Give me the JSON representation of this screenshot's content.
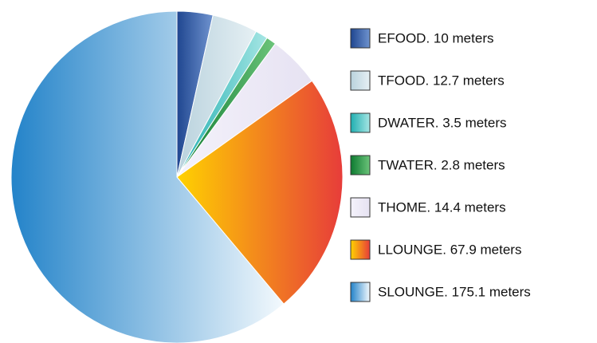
{
  "chart_data": {
    "type": "pie",
    "categories": [
      "EFOOD. 10 meters",
      "TFOOD. 12.7 meters",
      "DWATER. 3.5 meters",
      "TWATER. 2.8 meters",
      "THOME. 14.4 meters",
      "LLOUNGE. 67.9 meters",
      "SLOUNGE. 175.1 meters"
    ],
    "values": [
      10,
      12.7,
      3.5,
      2.8,
      14.4,
      67.9,
      175.1
    ],
    "colors": [
      [
        "#1f4690",
        "#6f93cf"
      ],
      [
        "#b9d2dd",
        "#e6f0f4"
      ],
      [
        "#20aeb0",
        "#a6e6e4"
      ],
      [
        "#0d7a30",
        "#6cc47a"
      ],
      [
        "#f4f2fb",
        "#e6e2f2"
      ],
      [
        "#ffd200",
        "#e73c3a"
      ],
      [
        "#2383c9",
        "#f3f9fd"
      ]
    ],
    "legend": "right"
  }
}
